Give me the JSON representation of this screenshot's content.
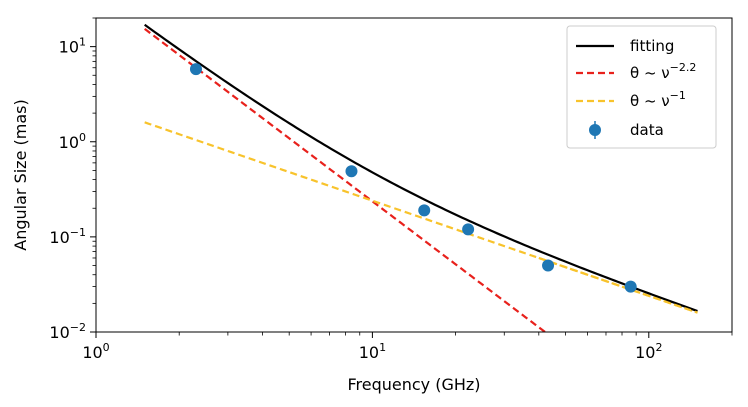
{
  "chart_data": {
    "type": "scatter",
    "title": "",
    "xlabel": "Frequency (GHz)",
    "ylabel": "Angular Size (mas)",
    "xscale": "log",
    "yscale": "log",
    "xlim": [
      1,
      200
    ],
    "ylim": [
      0.01,
      20
    ],
    "grid": false,
    "legend_position": "top-right",
    "x_ticks": [
      {
        "value": 1,
        "base": "10",
        "exp": "0"
      },
      {
        "value": 10,
        "base": "10",
        "exp": "1"
      },
      {
        "value": 100,
        "base": "10",
        "exp": "2"
      }
    ],
    "y_ticks": [
      {
        "value": 0.01,
        "base": "10",
        "exp": "−2"
      },
      {
        "value": 0.1,
        "base": "10",
        "exp": "−1"
      },
      {
        "value": 1,
        "base": "10",
        "exp": "0"
      },
      {
        "value": 10,
        "base": "10",
        "exp": "1"
      }
    ],
    "data": {
      "name": "data",
      "color": "#1f77b4",
      "points": [
        {
          "x": 2.3,
          "y": 5.8
        },
        {
          "x": 8.4,
          "y": 0.49
        },
        {
          "x": 15.4,
          "y": 0.19
        },
        {
          "x": 22.2,
          "y": 0.12
        },
        {
          "x": 43.2,
          "y": 0.05
        },
        {
          "x": 86.0,
          "y": 0.03
        }
      ]
    },
    "series": [
      {
        "name": "fitting",
        "kind": "fit",
        "color": "#000000",
        "dash": "solid",
        "a": 37.5,
        "p": -2.2,
        "b": 2.4,
        "q": -1,
        "x_range": [
          1.5,
          150
        ]
      },
      {
        "name": "θ ~ ν",
        "exp_label": "−2.2",
        "kind": "power",
        "color": "#e8211c",
        "dash": "dashed",
        "a": 37.5,
        "p": -2.2,
        "x_range": [
          1.5,
          43
        ]
      },
      {
        "name": "θ ~ ν",
        "exp_label": "−1",
        "kind": "power",
        "color": "#f8c32c",
        "dash": "dashed",
        "a": 2.4,
        "p": -1,
        "x_range": [
          1.5,
          150
        ]
      }
    ],
    "legend": [
      {
        "label": "fitting",
        "exp": ""
      },
      {
        "label": "θ ~ ν",
        "exp": "−2.2"
      },
      {
        "label": "θ ~ ν",
        "exp": "−1"
      },
      {
        "label": "data",
        "exp": ""
      }
    ]
  }
}
